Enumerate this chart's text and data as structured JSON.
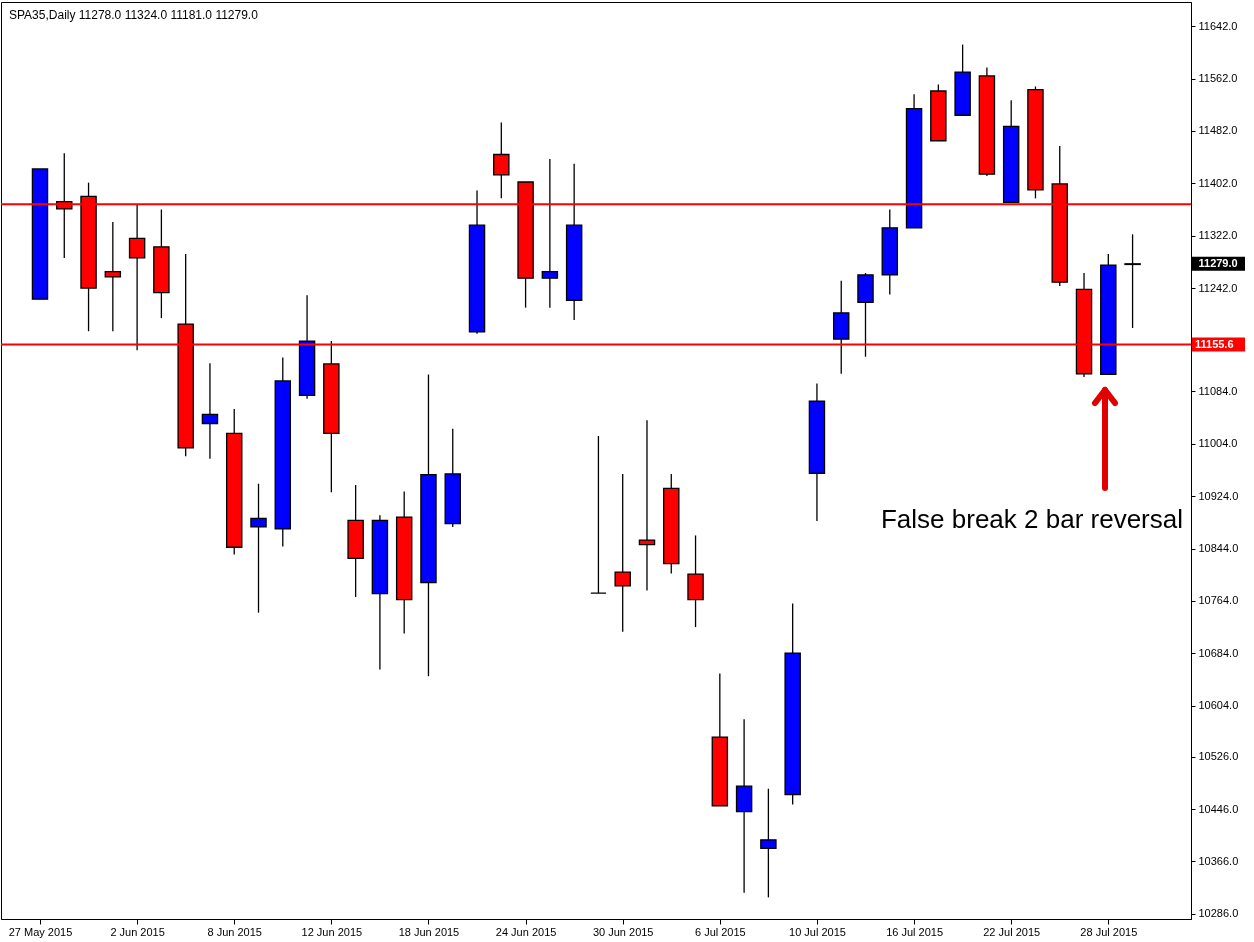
{
  "chart_data": {
    "type": "candlestick",
    "title": "SPA35,Daily 11278.0 11324.0 11181.0 11279.0",
    "categories": [
      "27 May 2015",
      null,
      null,
      null,
      "2 Jun 2015",
      null,
      null,
      null,
      "8 Jun 2015",
      null,
      null,
      null,
      "12 Jun 2015",
      null,
      null,
      null,
      "18 Jun 2015",
      null,
      null,
      null,
      "24 Jun 2015",
      null,
      null,
      null,
      "30 Jun 2015",
      null,
      null,
      null,
      "6 Jul 2015",
      null,
      null,
      null,
      "10 Jul 2015",
      null,
      null,
      null,
      "16 Jul 2015",
      null,
      null,
      null,
      "22 Jul 2015",
      null,
      null,
      null,
      "28 Jul 2015",
      null
    ],
    "ohlc": [
      [
        11225,
        11424,
        11225,
        11424
      ],
      [
        11374,
        11448,
        11288,
        11363
      ],
      [
        11382,
        11403,
        11176,
        11242
      ],
      [
        11267,
        11343,
        11176,
        11259
      ],
      [
        11318,
        11369,
        11147,
        11288
      ],
      [
        11305,
        11362,
        11196,
        11235
      ],
      [
        11187,
        11294,
        10985,
        10998
      ],
      [
        11035,
        11127,
        10981,
        11049
      ],
      [
        11020,
        11057,
        10835,
        10846
      ],
      [
        10877,
        10943,
        10746,
        10890
      ],
      [
        10874,
        11136,
        10847,
        11100
      ],
      [
        11078,
        11231,
        11073,
        11161
      ],
      [
        11126,
        11161,
        10930,
        11020
      ],
      [
        10887,
        10941,
        10770,
        10829
      ],
      [
        10775,
        10895,
        10659,
        10887
      ],
      [
        10892,
        10931,
        10714,
        10766
      ],
      [
        10792,
        11110,
        10649,
        10957
      ],
      [
        10882,
        11027,
        10877,
        10958
      ],
      [
        11175,
        11391,
        11172,
        11338
      ],
      [
        11446,
        11495,
        11379,
        11415
      ],
      [
        11404,
        11404,
        11212,
        11257
      ],
      [
        11257,
        11439,
        11212,
        11267
      ],
      [
        11223,
        11432,
        11193,
        11338
      ],
      [
        10776,
        11016,
        10776,
        10776
      ],
      [
        10808,
        10958,
        10717,
        10787
      ],
      [
        10857,
        11040,
        10780,
        10850
      ],
      [
        10936,
        10958,
        10806,
        10821
      ],
      [
        10805,
        10864,
        10724,
        10766
      ],
      [
        10556,
        10653,
        10451,
        10451
      ],
      [
        10442,
        10583,
        10318,
        10481
      ],
      [
        10386,
        10477,
        10311,
        10399
      ],
      [
        10468,
        10760,
        10453,
        10684
      ],
      [
        10959,
        11096,
        10886,
        11069
      ],
      [
        11164,
        11253,
        11111,
        11204
      ],
      [
        11220,
        11265,
        11137,
        11262
      ],
      [
        11262,
        11362,
        11232,
        11334
      ],
      [
        11334,
        11538,
        11334,
        11516
      ],
      [
        11543,
        11553,
        11467,
        11467
      ],
      [
        11506,
        11614,
        11506,
        11572
      ],
      [
        11566,
        11579,
        11413,
        11416
      ],
      [
        11373,
        11529,
        11373,
        11489
      ],
      [
        11545,
        11550,
        11379,
        11392
      ],
      [
        11401,
        11459,
        11245,
        11251
      ],
      [
        11240,
        11265,
        11106,
        11111
      ],
      [
        11110,
        11294,
        11110,
        11277
      ],
      [
        11278,
        11324,
        11181,
        11279
      ]
    ],
    "colors": [
      "#0000ff",
      "#ff0000",
      "#ff0000",
      "#ff0000",
      "#ff0000",
      "#ff0000",
      "#ff0000",
      "#0000ff",
      "#ff0000",
      "#0000ff",
      "#0000ff",
      "#0000ff",
      "#ff0000",
      "#ff0000",
      "#0000ff",
      "#ff0000",
      "#0000ff",
      "#0000ff",
      "#0000ff",
      "#ff0000",
      "#ff0000",
      "#0000ff",
      "#0000ff",
      "#000000",
      "#ff0000",
      "#ff0000",
      "#ff0000",
      "#ff0000",
      "#ff0000",
      "#0000ff",
      "#0000ff",
      "#0000ff",
      "#0000ff",
      "#0000ff",
      "#0000ff",
      "#0000ff",
      "#0000ff",
      "#ff0000",
      "#0000ff",
      "#ff0000",
      "#0000ff",
      "#ff0000",
      "#ff0000",
      "#ff0000",
      "#0000ff",
      "#000000"
    ],
    "ylim": [
      10278,
      11679
    ],
    "yticks": [
      {
        "value": 11642,
        "label": "11642.0"
      },
      {
        "value": 11562,
        "label": "11562.0"
      },
      {
        "value": 11482,
        "label": "11482.0"
      },
      {
        "value": 11402,
        "label": "11402.0"
      },
      {
        "value": 11322,
        "label": "11322.0"
      },
      {
        "value": 11279,
        "label": "11279.0"
      },
      {
        "value": 11242,
        "label": "11242.0"
      },
      {
        "value": 11084,
        "label": "11084.0"
      },
      {
        "value": 11004,
        "label": "11004.0"
      },
      {
        "value": 10924,
        "label": "10924.0"
      },
      {
        "value": 10844,
        "label": "10844.0"
      },
      {
        "value": 10764,
        "label": "10764.0"
      },
      {
        "value": 10684,
        "label": "10684.0"
      },
      {
        "value": 10604,
        "label": "10604.0"
      },
      {
        "value": 10526,
        "label": "10526.0"
      },
      {
        "value": 10446,
        "label": "10446.0"
      },
      {
        "value": 10366,
        "label": "10366.0"
      },
      {
        "value": 10286,
        "label": "10286.0"
      }
    ],
    "ref_lines": [
      {
        "axis": "y",
        "value": 11370,
        "color": "#ff0000"
      },
      {
        "axis": "y",
        "value": 11155.6,
        "label": "11155.6",
        "color": "#ff0000"
      }
    ],
    "annotations": [
      "False break 2 bar reversal"
    ]
  }
}
